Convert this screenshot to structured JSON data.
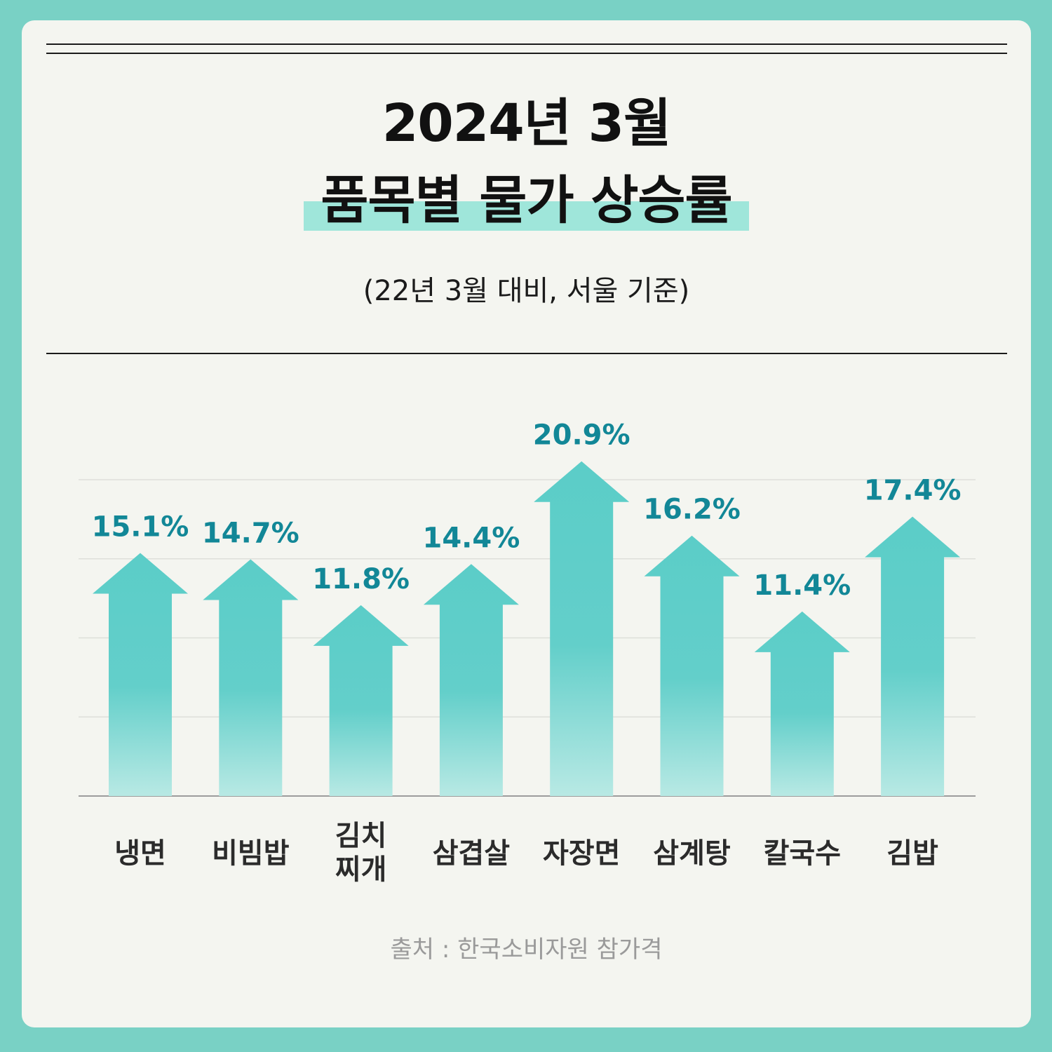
{
  "title_line1": "2024년 3월",
  "title_line2": "품목별 물가 상승률",
  "subtitle": "(22년 3월 대비, 서울 기준)",
  "source": "출처 : 한국소비자원 참가격",
  "colors": {
    "background": "#79d1c5",
    "card": "#f4f5f0",
    "arrow": "#5bcdc8",
    "value_label": "#128797",
    "highlight": "#9fe6da"
  },
  "chart_data": {
    "type": "bar",
    "title": "품목별 물가 상승률",
    "xlabel": "",
    "ylabel": "",
    "unit": "%",
    "categories": [
      "냉면",
      "비빔밥",
      "김치\n찌개",
      "삼겹살",
      "자장면",
      "삼계탕",
      "칼국수",
      "김밥"
    ],
    "values": [
      15.1,
      14.7,
      11.8,
      14.4,
      20.9,
      16.2,
      11.4,
      17.4
    ],
    "value_labels": [
      "15.1%",
      "14.7%",
      "11.8%",
      "14.4%",
      "20.9%",
      "16.2%",
      "11.4%",
      "17.4%"
    ],
    "ylim": [
      0,
      20
    ],
    "grid": true,
    "legend": "none",
    "mark_shape": "arrow"
  }
}
